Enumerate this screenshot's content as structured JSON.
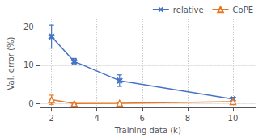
{
  "chart_data": {
    "type": "line",
    "x": [
      2,
      3,
      5,
      10
    ],
    "series": [
      {
        "name": "relative",
        "color": "#4472c4",
        "values": [
          17.5,
          11.0,
          6.0,
          1.2
        ],
        "yerr": [
          3.0,
          0.8,
          1.5,
          0.4
        ],
        "marker": "x"
      },
      {
        "name": "CoPE",
        "color": "#e87722",
        "values": [
          1.0,
          0.0,
          0.1,
          0.5
        ],
        "yerr": [
          1.2,
          0.05,
          0.1,
          0.3
        ],
        "marker": "triangle-open"
      }
    ],
    "xlabel": "Training data (k)",
    "ylabel": "Val. error (%)",
    "xlim": [
      1.5,
      11
    ],
    "ylim": [
      -1,
      22
    ],
    "xticks": [
      2,
      4,
      6,
      8,
      10
    ],
    "yticks": [
      0,
      10,
      20
    ],
    "grid": true,
    "legend": "upper right"
  }
}
